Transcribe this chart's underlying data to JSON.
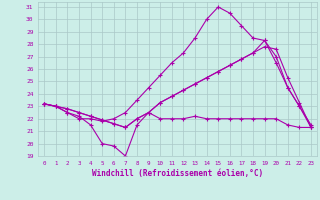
{
  "xlabel": "Windchill (Refroidissement éolien,°C)",
  "bg_color": "#cceee8",
  "grid_color": "#aac8c8",
  "line_color": "#aa00aa",
  "xmin": -0.5,
  "xmax": 23.5,
  "ymin": 19,
  "ymax": 31.4,
  "yticks": [
    19,
    20,
    21,
    22,
    23,
    24,
    25,
    26,
    27,
    28,
    29,
    30,
    31
  ],
  "xticks": [
    0,
    1,
    2,
    3,
    4,
    5,
    6,
    7,
    8,
    9,
    10,
    11,
    12,
    13,
    14,
    15,
    16,
    17,
    18,
    19,
    20,
    21,
    22,
    23
  ],
  "series": [
    [
      23.2,
      23.0,
      22.5,
      22.2,
      21.5,
      20.0,
      19.8,
      19.0,
      21.5,
      22.5,
      22.0,
      22.0,
      22.0,
      22.2,
      22.0,
      22.0,
      22.0,
      22.0,
      22.0,
      22.0,
      22.0,
      21.5,
      21.3,
      21.3
    ],
    [
      23.2,
      23.0,
      22.5,
      22.0,
      22.0,
      21.8,
      22.0,
      22.5,
      23.5,
      24.5,
      25.5,
      26.5,
      27.3,
      28.5,
      30.0,
      31.0,
      30.5,
      29.5,
      28.5,
      28.3,
      27.0,
      24.5,
      23.0,
      21.3
    ],
    [
      23.2,
      23.0,
      22.8,
      22.5,
      22.2,
      21.9,
      21.6,
      21.3,
      22.0,
      22.5,
      23.3,
      23.8,
      24.3,
      24.8,
      25.3,
      25.8,
      26.3,
      26.8,
      27.3,
      27.8,
      27.6,
      25.3,
      23.3,
      21.3
    ],
    [
      23.2,
      23.0,
      22.8,
      22.5,
      22.2,
      21.9,
      21.6,
      21.3,
      22.0,
      22.5,
      23.3,
      23.8,
      24.3,
      24.8,
      25.3,
      25.8,
      26.3,
      26.8,
      27.3,
      28.3,
      26.5,
      24.5,
      23.0,
      21.5
    ]
  ]
}
